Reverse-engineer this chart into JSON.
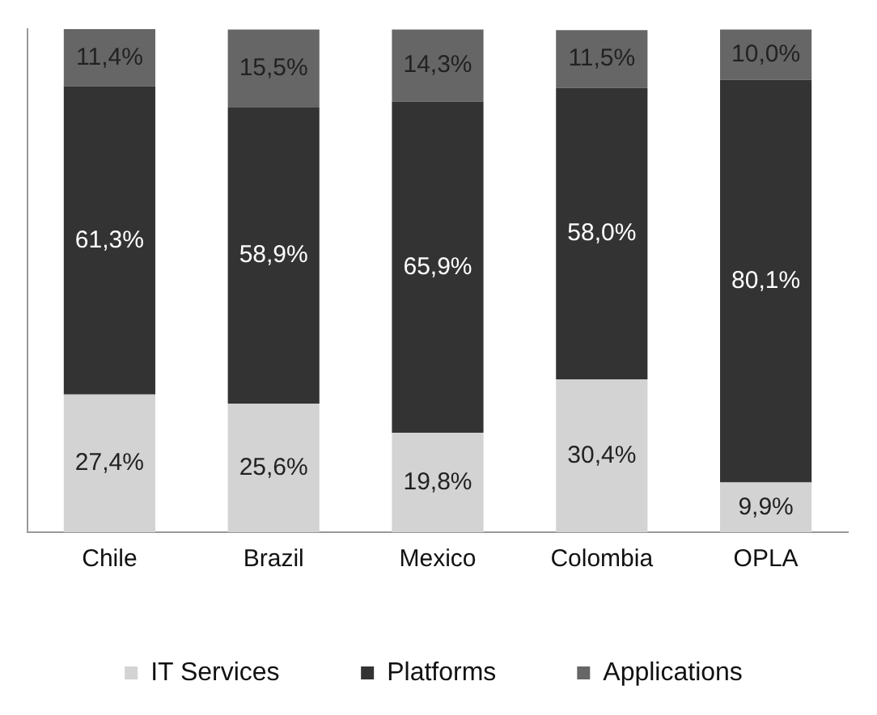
{
  "chart_data": {
    "type": "bar",
    "stacked": true,
    "categories": [
      "Chile",
      "Brazil",
      "Mexico",
      "Colombia",
      "OPLA"
    ],
    "series": [
      {
        "name": "IT Services",
        "color": "#d3d3d3",
        "values": [
          27.4,
          25.6,
          19.8,
          30.4,
          9.9
        ],
        "value_labels": [
          "27,4%",
          "25,6%",
          "19,8%",
          "30,4%",
          "9,9%"
        ]
      },
      {
        "name": "Platforms",
        "color": "#333333",
        "values": [
          61.3,
          58.9,
          65.9,
          58.0,
          80.1
        ],
        "value_labels": [
          "61,3%",
          "58,9%",
          "65,9%",
          "58,0%",
          "80,1%"
        ]
      },
      {
        "name": "Applications",
        "color": "#666666",
        "values": [
          11.4,
          15.5,
          14.3,
          11.5,
          10.0
        ],
        "value_labels": [
          "11,4%",
          "15,5%",
          "14,3%",
          "11,5%",
          "10,0%"
        ]
      }
    ],
    "legend": "bottom",
    "tick_labels": "x",
    "grid": false
  }
}
